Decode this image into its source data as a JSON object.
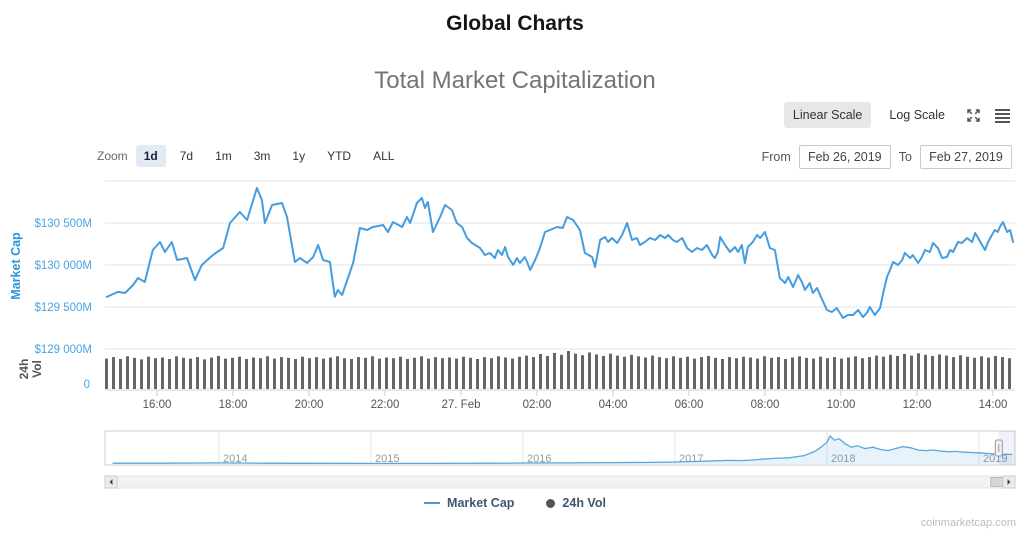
{
  "page": {
    "title": "Global Charts",
    "subtitle": "Total Market Capitalization",
    "watermark": "coinmarketcap.com"
  },
  "scale_toggle": {
    "linear_label": "Linear Scale",
    "log_label": "Log Scale",
    "active": "linear"
  },
  "zoom_controls": {
    "label": "Zoom",
    "buttons": [
      "1d",
      "7d",
      "1m",
      "3m",
      "1y",
      "YTD",
      "ALL"
    ],
    "active": "1d"
  },
  "date_range": {
    "from_label": "From",
    "from_value": "Feb 26, 2019",
    "to_label": "To",
    "to_value": "Feb 27, 2019"
  },
  "legend": {
    "market_cap": {
      "label": "Market Cap",
      "color": "#459de0"
    },
    "volume": {
      "label": "24h Vol",
      "color": "#545454"
    }
  },
  "colors": {
    "line": "#459de0",
    "axis_label_blue": "#4aa4e4",
    "y_axis_title_blue": "#2b95d9",
    "volume_bar": "#666666",
    "gridline": "#e6e6e6",
    "x_axis_line": "#c9d6e8",
    "x_label_gray": "#555555",
    "nav_label_gray": "#999999",
    "legend_text": "#3e576f"
  },
  "chart_data": {
    "type": "line",
    "title": "Total Market Capitalization",
    "legend_entries": [
      "Market Cap",
      "24h Vol"
    ],
    "x_axis": {
      "start": "Feb 26, 2019 ~14:40",
      "end": "Feb 27, 2019 ~14:35",
      "ticks": [
        {
          "t": 16,
          "label": "16:00"
        },
        {
          "t": 18,
          "label": "18:00"
        },
        {
          "t": 20,
          "label": "20:00"
        },
        {
          "t": 22,
          "label": "22:00"
        },
        {
          "t": 24,
          "label": "27. Feb"
        },
        {
          "t": 26,
          "label": "02:00"
        },
        {
          "t": 28,
          "label": "04:00"
        },
        {
          "t": 30,
          "label": "06:00"
        },
        {
          "t": 32,
          "label": "08:00"
        },
        {
          "t": 34,
          "label": "10:00"
        },
        {
          "t": 36,
          "label": "12:00"
        },
        {
          "t": 38,
          "label": "14:00"
        }
      ]
    },
    "y_axis": {
      "title": "Market Cap",
      "unit": "USD millions",
      "range": [
        128900,
        131050
      ],
      "grid_values": [
        129000,
        129500,
        130000,
        130500,
        131000
      ],
      "ticks": [
        {
          "v": 129000,
          "label": "$129 000M"
        },
        {
          "v": 129500,
          "label": "$129 500M"
        },
        {
          "v": 130000,
          "label": "$130 000M"
        },
        {
          "v": 130500,
          "label": "$130 500M"
        }
      ]
    },
    "market_cap_series": {
      "name": "Market Cap",
      "unit": "USD millions, t = hours since Feb 26 00:00",
      "points": [
        [
          14.68,
          129620
        ],
        [
          14.97,
          129680
        ],
        [
          15.16,
          129667
        ],
        [
          15.37,
          129762
        ],
        [
          15.5,
          129845
        ],
        [
          15.68,
          129798
        ],
        [
          15.89,
          130179
        ],
        [
          16.08,
          130274
        ],
        [
          16.21,
          130155
        ],
        [
          16.39,
          130274
        ],
        [
          16.53,
          130060
        ],
        [
          16.79,
          130083
        ],
        [
          17.0,
          129821
        ],
        [
          17.18,
          130000
        ],
        [
          17.47,
          130119
        ],
        [
          17.74,
          130202
        ],
        [
          17.92,
          130500
        ],
        [
          18.18,
          130631
        ],
        [
          18.37,
          130536
        ],
        [
          18.63,
          130917
        ],
        [
          18.76,
          130774
        ],
        [
          18.84,
          130500
        ],
        [
          19.03,
          130714
        ],
        [
          19.29,
          130738
        ],
        [
          19.42,
          130571
        ],
        [
          19.63,
          130036
        ],
        [
          19.76,
          130083
        ],
        [
          19.95,
          130024
        ],
        [
          20.11,
          130095
        ],
        [
          20.24,
          130238
        ],
        [
          20.37,
          130060
        ],
        [
          20.55,
          130036
        ],
        [
          20.68,
          129620
        ],
        [
          20.76,
          129702
        ],
        [
          20.87,
          129643
        ],
        [
          21.16,
          130024
        ],
        [
          21.34,
          130440
        ],
        [
          21.53,
          130417
        ],
        [
          21.68,
          130452
        ],
        [
          21.95,
          130476
        ],
        [
          22.08,
          130393
        ],
        [
          22.21,
          130512
        ],
        [
          22.45,
          130452
        ],
        [
          22.58,
          130571
        ],
        [
          22.66,
          130500
        ],
        [
          22.84,
          130738
        ],
        [
          22.97,
          130798
        ],
        [
          23.05,
          130679
        ],
        [
          23.13,
          130750
        ],
        [
          23.26,
          130393
        ],
        [
          23.45,
          130571
        ],
        [
          23.58,
          130714
        ],
        [
          23.76,
          130655
        ],
        [
          23.89,
          130500
        ],
        [
          24.03,
          130452
        ],
        [
          24.16,
          130321
        ],
        [
          24.29,
          130262
        ],
        [
          24.5,
          130202
        ],
        [
          24.63,
          130119
        ],
        [
          24.76,
          130143
        ],
        [
          24.89,
          130083
        ],
        [
          24.97,
          130179
        ],
        [
          25.08,
          130119
        ],
        [
          25.16,
          130214
        ],
        [
          25.24,
          130095
        ],
        [
          25.37,
          130000
        ],
        [
          25.47,
          130083
        ],
        [
          25.55,
          130024
        ],
        [
          25.68,
          130095
        ],
        [
          25.74,
          130036
        ],
        [
          25.82,
          129940
        ],
        [
          25.95,
          130060
        ],
        [
          26.08,
          130202
        ],
        [
          26.21,
          130393
        ],
        [
          26.34,
          130417
        ],
        [
          26.53,
          130452
        ],
        [
          26.68,
          130440
        ],
        [
          26.79,
          130571
        ],
        [
          26.95,
          130536
        ],
        [
          27.13,
          130417
        ],
        [
          27.26,
          130143
        ],
        [
          27.45,
          130095
        ],
        [
          27.53,
          129976
        ],
        [
          27.66,
          130298
        ],
        [
          27.79,
          130333
        ],
        [
          27.87,
          130274
        ],
        [
          27.97,
          130321
        ],
        [
          28.11,
          130262
        ],
        [
          28.24,
          130357
        ],
        [
          28.37,
          130500
        ],
        [
          28.5,
          130298
        ],
        [
          28.63,
          130321
        ],
        [
          28.71,
          130238
        ],
        [
          28.84,
          130274
        ],
        [
          28.97,
          130321
        ],
        [
          29.11,
          130298
        ],
        [
          29.24,
          130357
        ],
        [
          29.37,
          130321
        ],
        [
          29.45,
          130357
        ],
        [
          29.58,
          130298
        ],
        [
          29.68,
          130274
        ],
        [
          29.82,
          130321
        ],
        [
          29.95,
          130202
        ],
        [
          30.08,
          130155
        ],
        [
          30.21,
          130202
        ],
        [
          30.34,
          130179
        ],
        [
          30.47,
          130238
        ],
        [
          30.61,
          130119
        ],
        [
          30.68,
          130083
        ],
        [
          30.76,
          130155
        ],
        [
          30.82,
          130333
        ],
        [
          30.95,
          130238
        ],
        [
          31.08,
          130155
        ],
        [
          31.21,
          130214
        ],
        [
          31.29,
          130155
        ],
        [
          31.39,
          130238
        ],
        [
          31.47,
          130024
        ],
        [
          31.55,
          130214
        ],
        [
          31.68,
          130274
        ],
        [
          31.79,
          130357
        ],
        [
          31.87,
          130321
        ],
        [
          32.0,
          130393
        ],
        [
          32.13,
          130202
        ],
        [
          32.26,
          130179
        ],
        [
          32.39,
          129845
        ],
        [
          32.53,
          129786
        ],
        [
          32.61,
          129857
        ],
        [
          32.74,
          129738
        ],
        [
          32.87,
          129881
        ],
        [
          32.97,
          129798
        ],
        [
          33.05,
          129702
        ],
        [
          33.18,
          129786
        ],
        [
          33.26,
          129667
        ],
        [
          33.37,
          129726
        ],
        [
          33.45,
          129643
        ],
        [
          33.63,
          129464
        ],
        [
          33.76,
          129440
        ],
        [
          33.89,
          129488
        ],
        [
          33.97,
          129429
        ],
        [
          34.05,
          129369
        ],
        [
          34.18,
          129405
        ],
        [
          34.32,
          129405
        ],
        [
          34.45,
          129464
        ],
        [
          34.58,
          129381
        ],
        [
          34.68,
          129429
        ],
        [
          34.76,
          129500
        ],
        [
          34.89,
          129405
        ],
        [
          35.03,
          129488
        ],
        [
          35.11,
          129667
        ],
        [
          35.21,
          129857
        ],
        [
          35.29,
          129940
        ],
        [
          35.37,
          130036
        ],
        [
          35.5,
          130000
        ],
        [
          35.61,
          130060
        ],
        [
          35.68,
          130143
        ],
        [
          35.82,
          130083
        ],
        [
          35.89,
          130119
        ],
        [
          36.03,
          130024
        ],
        [
          36.13,
          130095
        ],
        [
          36.21,
          130179
        ],
        [
          36.34,
          130155
        ],
        [
          36.42,
          130262
        ],
        [
          36.55,
          130202
        ],
        [
          36.66,
          130083
        ],
        [
          36.79,
          130095
        ],
        [
          36.87,
          130179
        ],
        [
          36.95,
          130155
        ],
        [
          37.08,
          130274
        ],
        [
          37.18,
          130262
        ],
        [
          37.32,
          130321
        ],
        [
          37.45,
          130274
        ],
        [
          37.53,
          130381
        ],
        [
          37.61,
          130321
        ],
        [
          37.71,
          130238
        ],
        [
          37.79,
          130179
        ],
        [
          37.87,
          130274
        ],
        [
          37.97,
          130357
        ],
        [
          38.05,
          130417
        ],
        [
          38.13,
          130393
        ],
        [
          38.18,
          130452
        ],
        [
          38.26,
          130512
        ],
        [
          38.37,
          130393
        ],
        [
          38.45,
          130417
        ],
        [
          38.53,
          130274
        ]
      ]
    },
    "volume_series": {
      "name": "24h Vol",
      "axis_title": "24h Vol",
      "visible_axis_labels": [
        "0"
      ],
      "unit": "relative height (axis max not labeled)",
      "bars": [
        0.8,
        0.84,
        0.79,
        0.86,
        0.82,
        0.78,
        0.85,
        0.81,
        0.83,
        0.79,
        0.86,
        0.82,
        0.8,
        0.84,
        0.78,
        0.83,
        0.87,
        0.8,
        0.82,
        0.85,
        0.79,
        0.83,
        0.81,
        0.86,
        0.8,
        0.84,
        0.82,
        0.79,
        0.85,
        0.81,
        0.84,
        0.8,
        0.83,
        0.86,
        0.81,
        0.79,
        0.84,
        0.82,
        0.86,
        0.8,
        0.83,
        0.81,
        0.85,
        0.79,
        0.82,
        0.86,
        0.8,
        0.84,
        0.81,
        0.83,
        0.8,
        0.85,
        0.82,
        0.79,
        0.84,
        0.81,
        0.86,
        0.83,
        0.8,
        0.85,
        0.88,
        0.84,
        0.92,
        0.87,
        0.95,
        0.9,
        1.0,
        0.93,
        0.89,
        0.96,
        0.91,
        0.87,
        0.93,
        0.88,
        0.85,
        0.9,
        0.86,
        0.83,
        0.88,
        0.84,
        0.81,
        0.86,
        0.82,
        0.85,
        0.8,
        0.84,
        0.87,
        0.82,
        0.79,
        0.84,
        0.81,
        0.85,
        0.83,
        0.8,
        0.86,
        0.82,
        0.84,
        0.79,
        0.83,
        0.86,
        0.82,
        0.8,
        0.85,
        0.81,
        0.84,
        0.8,
        0.83,
        0.86,
        0.81,
        0.84,
        0.88,
        0.85,
        0.9,
        0.87,
        0.92,
        0.88,
        0.94,
        0.9,
        0.87,
        0.91,
        0.88,
        0.84,
        0.89,
        0.85,
        0.82,
        0.86,
        0.83,
        0.87,
        0.84,
        0.81
      ]
    },
    "navigator": {
      "year_ticks": [
        {
          "year": 2014,
          "label": "2014"
        },
        {
          "year": 2015,
          "label": "2015"
        },
        {
          "year": 2016,
          "label": "2016"
        },
        {
          "year": 2017,
          "label": "2017"
        },
        {
          "year": 2018,
          "label": "2018"
        },
        {
          "year": 2019,
          "label": "2019"
        }
      ],
      "range": [
        2013.25,
        2019.24
      ],
      "handle_at_year": 2019.13,
      "points": [
        [
          2013.3,
          0.03
        ],
        [
          2013.6,
          0.03
        ],
        [
          2014.0,
          0.04
        ],
        [
          2014.3,
          0.03
        ],
        [
          2014.6,
          0.025
        ],
        [
          2015.0,
          0.02
        ],
        [
          2015.4,
          0.02
        ],
        [
          2015.8,
          0.03
        ],
        [
          2016.0,
          0.035
        ],
        [
          2016.3,
          0.04
        ],
        [
          2016.6,
          0.05
        ],
        [
          2016.9,
          0.06
        ],
        [
          2017.0,
          0.07
        ],
        [
          2017.2,
          0.1
        ],
        [
          2017.35,
          0.13
        ],
        [
          2017.45,
          0.12
        ],
        [
          2017.55,
          0.16
        ],
        [
          2017.65,
          0.2
        ],
        [
          2017.75,
          0.22
        ],
        [
          2017.85,
          0.3
        ],
        [
          2017.92,
          0.45
        ],
        [
          2017.96,
          0.6
        ],
        [
          2018.0,
          0.78
        ],
        [
          2018.02,
          1.0
        ],
        [
          2018.05,
          0.85
        ],
        [
          2018.08,
          0.9
        ],
        [
          2018.12,
          0.72
        ],
        [
          2018.16,
          0.6
        ],
        [
          2018.2,
          0.65
        ],
        [
          2018.25,
          0.55
        ],
        [
          2018.3,
          0.6
        ],
        [
          2018.35,
          0.52
        ],
        [
          2018.4,
          0.48
        ],
        [
          2018.45,
          0.55
        ],
        [
          2018.5,
          0.62
        ],
        [
          2018.55,
          0.58
        ],
        [
          2018.6,
          0.5
        ],
        [
          2018.65,
          0.48
        ],
        [
          2018.7,
          0.5
        ],
        [
          2018.75,
          0.46
        ],
        [
          2018.8,
          0.44
        ],
        [
          2018.85,
          0.45
        ],
        [
          2018.9,
          0.42
        ],
        [
          2019.0,
          0.4
        ],
        [
          2019.05,
          0.38
        ],
        [
          2019.1,
          0.36
        ],
        [
          2019.15,
          0.35
        ],
        [
          2019.22,
          0.34
        ]
      ]
    }
  }
}
